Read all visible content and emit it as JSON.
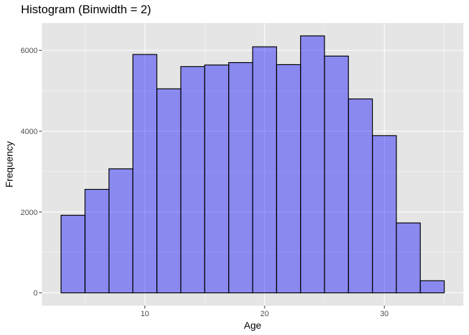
{
  "chart_data": {
    "type": "bar",
    "title": "Histogram (Binwidth = 2)",
    "xlabel": "Age",
    "ylabel": "Frequency",
    "binwidth": 2,
    "bins": [
      {
        "x0": 3,
        "x1": 5,
        "value": 1920
      },
      {
        "x0": 5,
        "x1": 7,
        "value": 2560
      },
      {
        "x0": 7,
        "x1": 9,
        "value": 3070
      },
      {
        "x0": 9,
        "x1": 11,
        "value": 5900
      },
      {
        "x0": 11,
        "x1": 13,
        "value": 5050
      },
      {
        "x0": 13,
        "x1": 15,
        "value": 5600
      },
      {
        "x0": 15,
        "x1": 17,
        "value": 5640
      },
      {
        "x0": 17,
        "x1": 19,
        "value": 5700
      },
      {
        "x0": 19,
        "x1": 21,
        "value": 6090
      },
      {
        "x0": 21,
        "x1": 23,
        "value": 5650
      },
      {
        "x0": 23,
        "x1": 25,
        "value": 6360
      },
      {
        "x0": 25,
        "x1": 27,
        "value": 5860
      },
      {
        "x0": 27,
        "x1": 29,
        "value": 4800
      },
      {
        "x0": 29,
        "x1": 31,
        "value": 3890
      },
      {
        "x0": 31,
        "x1": 33,
        "value": 1730
      },
      {
        "x0": 33,
        "x1": 35,
        "value": 300
      }
    ],
    "xlim": [
      1.4,
      36.6
    ],
    "ylim": [
      -318,
      6678
    ],
    "x_ticks": [
      10,
      20,
      30
    ],
    "x_tick_labels": [
      "10",
      "20",
      "30"
    ],
    "y_ticks": [
      0,
      2000,
      4000,
      6000
    ],
    "y_tick_labels": [
      "0",
      "2000",
      "4000",
      "6000"
    ],
    "grid": true,
    "colors": {
      "panel_background": "#e5e5e5",
      "grid_major": "#ffffff",
      "bar_fill": "#0000ff",
      "bar_fill_opacity": 0.4,
      "bar_outline": "#000000"
    }
  }
}
